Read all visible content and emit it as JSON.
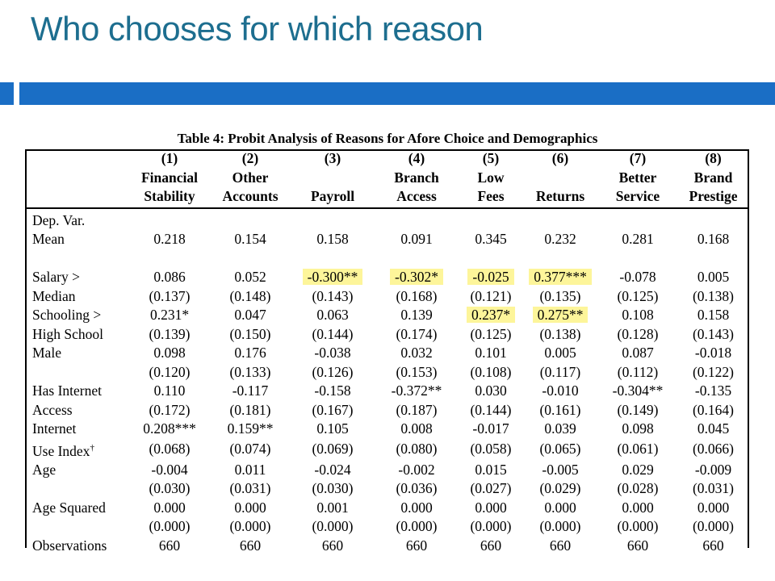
{
  "slide": {
    "title": "Who chooses for which reason"
  },
  "table": {
    "caption": "Table 4: Probit Analysis of Reasons for Afore Choice and Demographics",
    "header": {
      "numbers": [
        "(1)",
        "(2)",
        "(3)",
        "(4)",
        "(5)",
        "(6)",
        "(7)",
        "(8)"
      ],
      "line1": [
        "Financial",
        "Other",
        "",
        "Branch",
        "Low",
        "",
        "Better",
        "Brand"
      ],
      "line2": [
        "Stability",
        "Accounts",
        "Payroll",
        "Access",
        "Fees",
        "Returns",
        "Service",
        "Prestige"
      ]
    },
    "rows": [
      {
        "label": "Dep. Var.",
        "values": [
          "",
          "",
          "",
          "",
          "",
          "",
          "",
          ""
        ]
      },
      {
        "label": "Mean",
        "values": [
          "0.218",
          "0.154",
          "0.158",
          "0.091",
          "0.345",
          "0.232",
          "0.281",
          "0.168"
        ]
      },
      {
        "label": "",
        "values": [
          "",
          "",
          "",
          "",
          "",
          "",
          "",
          ""
        ]
      },
      {
        "label": "Salary >",
        "values": [
          "0.086",
          "0.052",
          "-0.300**",
          "-0.302*",
          "-0.025",
          "0.377***",
          "-0.078",
          "0.005"
        ]
      },
      {
        "label": "Median",
        "values": [
          "(0.137)",
          "(0.148)",
          "(0.143)",
          "(0.168)",
          "(0.121)",
          "(0.135)",
          "(0.125)",
          "(0.138)"
        ]
      },
      {
        "label": "Schooling >",
        "values": [
          "0.231*",
          "0.047",
          "0.063",
          "0.139",
          "0.237*",
          "0.275**",
          "0.108",
          "0.158"
        ]
      },
      {
        "label": "High School",
        "values": [
          "(0.139)",
          "(0.150)",
          "(0.144)",
          "(0.174)",
          "(0.125)",
          "(0.138)",
          "(0.128)",
          "(0.143)"
        ]
      },
      {
        "label": "Male",
        "values": [
          "0.098",
          "0.176",
          "-0.038",
          "0.032",
          "0.101",
          "0.005",
          "0.087",
          "-0.018"
        ]
      },
      {
        "label": "",
        "values": [
          "(0.120)",
          "(0.133)",
          "(0.126)",
          "(0.153)",
          "(0.108)",
          "(0.117)",
          "(0.112)",
          "(0.122)"
        ]
      },
      {
        "label": "Has Internet",
        "values": [
          "0.110",
          "-0.117",
          "-0.158",
          "-0.372**",
          "0.030",
          "-0.010",
          "-0.304**",
          "-0.135"
        ]
      },
      {
        "label": "Access",
        "values": [
          "(0.172)",
          "(0.181)",
          "(0.167)",
          "(0.187)",
          "(0.144)",
          "(0.161)",
          "(0.149)",
          "(0.164)"
        ]
      },
      {
        "label": "Internet",
        "values": [
          "0.208***",
          "0.159**",
          "0.105",
          "0.008",
          "-0.017",
          "0.039",
          "0.098",
          "0.045"
        ]
      },
      {
        "label": "Use Index",
        "sup": "†",
        "values": [
          "(0.068)",
          "(0.074)",
          "(0.069)",
          "(0.080)",
          "(0.058)",
          "(0.065)",
          "(0.061)",
          "(0.066)"
        ]
      },
      {
        "label": "Age",
        "values": [
          "-0.004",
          "0.011",
          "-0.024",
          "-0.002",
          "0.015",
          "-0.005",
          "0.029",
          "-0.009"
        ]
      },
      {
        "label": "",
        "values": [
          "(0.030)",
          "(0.031)",
          "(0.030)",
          "(0.036)",
          "(0.027)",
          "(0.029)",
          "(0.028)",
          "(0.031)"
        ]
      },
      {
        "label": "Age Squared",
        "values": [
          "0.000",
          "0.000",
          "0.001",
          "0.000",
          "0.000",
          "0.000",
          "0.000",
          "0.000"
        ]
      },
      {
        "label": "",
        "values": [
          "(0.000)",
          "(0.000)",
          "(0.000)",
          "(0.000)",
          "(0.000)",
          "(0.000)",
          "(0.000)",
          "(0.000)"
        ]
      },
      {
        "label": "Observations",
        "values": [
          "660",
          "660",
          "660",
          "660",
          "660",
          "660",
          "660",
          "660"
        ]
      }
    ],
    "highlighted_cells": [
      {
        "row": 3,
        "col": 2
      },
      {
        "row": 3,
        "col": 3
      },
      {
        "row": 3,
        "col": 4
      },
      {
        "row": 3,
        "col": 5
      },
      {
        "row": 5,
        "col": 4
      },
      {
        "row": 5,
        "col": 5
      }
    ],
    "highlight_color": "#fdf59a"
  },
  "colors": {
    "title": "#1d6e8f",
    "accent_bar": "#1a6ec5"
  }
}
